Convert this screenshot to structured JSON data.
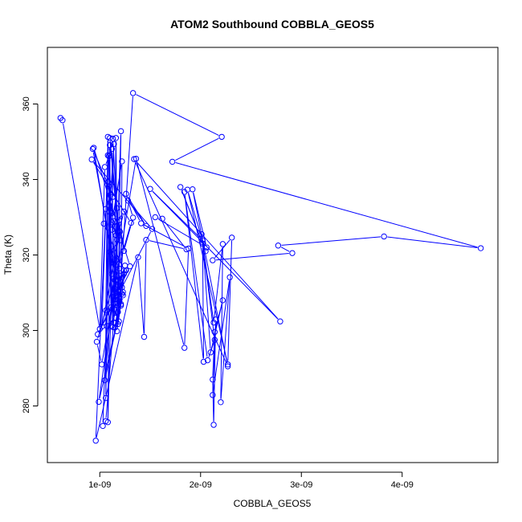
{
  "chart_data": {
    "type": "line",
    "title": "ATOM2 Southbound COBBLA_GEOS5",
    "xlabel": "COBBLA_GEOS5",
    "ylabel": "Theta (K)",
    "xlim": [
      4.8e-10,
      4.95e-09
    ],
    "ylim": [
      265,
      375
    ],
    "x_ticks": [
      1e-09,
      2e-09,
      3e-09,
      4e-09
    ],
    "x_tick_labels": [
      "1e-09",
      "2e-09",
      "3e-09",
      "4e-09"
    ],
    "y_ticks": [
      280,
      300,
      320,
      340,
      360
    ],
    "y_tick_labels": [
      "280",
      "300",
      "320",
      "340",
      "360"
    ],
    "grid": false,
    "legend": "none",
    "series": [
      {
        "color": "#0000ff",
        "marker": "open-circle",
        "points": [
          [
            6.1e-10,
            356.3
          ],
          [
            6.3e-10,
            355.7
          ],
          [
            1e-09,
            300.4
          ],
          [
            1.05e-09,
            343.3
          ],
          [
            1.12e-09,
            348.1
          ],
          [
            1.14e-09,
            302.0
          ],
          [
            1.16e-09,
            351.0
          ],
          [
            1.18e-09,
            304.9
          ],
          [
            1.21e-09,
            352.8
          ],
          [
            1.15e-09,
            307.2
          ],
          [
            1.09e-09,
            334.8
          ],
          [
            1.11e-09,
            306.1
          ],
          [
            1.1e-09,
            349.1
          ],
          [
            1.06e-09,
            282.1
          ],
          [
            1.06e-09,
            305.3
          ],
          [
            1.08e-09,
            351.3
          ],
          [
            1.13e-09,
            300.9
          ],
          [
            1.1e-09,
            331.4
          ],
          [
            1.08e-09,
            275.7
          ],
          [
            1.12e-09,
            315.0
          ],
          [
            1.2e-09,
            326.2
          ],
          [
            1.18e-09,
            301.7
          ],
          [
            1.33e-09,
            362.9
          ],
          [
            2.21e-09,
            351.3
          ],
          [
            1.72e-09,
            344.7
          ],
          [
            4.78e-09,
            321.8
          ],
          [
            3.82e-09,
            324.9
          ],
          [
            2.77e-09,
            322.5
          ],
          [
            2.91e-09,
            320.5
          ],
          [
            2.12e-09,
            318.6
          ],
          [
            2.31e-09,
            324.6
          ],
          [
            2.27e-09,
            291.0
          ],
          [
            1.87e-09,
            337.3
          ],
          [
            2.05e-09,
            321.0
          ],
          [
            1.8e-09,
            338.0
          ],
          [
            2.02e-09,
            323.0
          ],
          [
            2.03e-09,
            291.7
          ],
          [
            1.84e-09,
            336.7
          ],
          [
            2.07e-09,
            292.1
          ],
          [
            2.14e-09,
            297.5
          ],
          [
            2.01e-09,
            325.5
          ],
          [
            2.13e-09,
            302.1
          ],
          [
            2.22e-09,
            322.9
          ],
          [
            2.2e-09,
            281.0
          ],
          [
            2.29e-09,
            314.1
          ],
          [
            2.12e-09,
            282.9
          ],
          [
            2.15e-09,
            302.9
          ],
          [
            2.13e-09,
            275.0
          ],
          [
            2.12e-09,
            287.0
          ],
          [
            2.14e-09,
            299.6
          ],
          [
            2.22e-09,
            308.0
          ],
          [
            2.1e-09,
            294.2
          ],
          [
            2.02e-09,
            323.9
          ],
          [
            1.5e-09,
            337.5
          ],
          [
            2.79e-09,
            302.4
          ],
          [
            1.34e-09,
            345.4
          ],
          [
            2.27e-09,
            290.5
          ],
          [
            1.92e-09,
            337.4
          ],
          [
            2.06e-09,
            322.0
          ],
          [
            1.55e-09,
            330.0
          ],
          [
            1.62e-09,
            329.6
          ],
          [
            1.86e-09,
            321.5
          ],
          [
            1.46e-09,
            324.0
          ],
          [
            1.44e-09,
            298.3
          ],
          [
            1.38e-09,
            319.4
          ],
          [
            9.6e-10,
            270.8
          ],
          [
            1.06e-09,
            332.2
          ],
          [
            1.11e-09,
            336.1
          ],
          [
            1.03e-09,
            274.7
          ],
          [
            1.06e-09,
            276.0
          ],
          [
            1.17e-09,
            313.3
          ],
          [
            1.21e-09,
            306.6
          ],
          [
            1.22e-09,
            344.8
          ],
          [
            1.13e-09,
            330.2
          ],
          [
            1.17e-09,
            324.1
          ],
          [
            1.24e-09,
            331.5
          ],
          [
            1.12e-09,
            326.7
          ],
          [
            1.09e-09,
            338.2
          ],
          [
            9.3e-10,
            348.1
          ],
          [
            1.17e-09,
            312.9
          ],
          [
            1.24e-09,
            315.0
          ],
          [
            1.15e-09,
            313.3
          ],
          [
            9.4e-10,
            348.4
          ],
          [
            1.3e-09,
            317.0
          ],
          [
            9.8e-10,
            299.0
          ],
          [
            1.52e-09,
            326.9
          ],
          [
            9.2e-10,
            345.3
          ],
          [
            1.31e-09,
            328.5
          ],
          [
            9.7e-10,
            297.0
          ],
          [
            1.02e-09,
            291.0
          ],
          [
            1.36e-09,
            345.5
          ],
          [
            1.84e-09,
            295.4
          ],
          [
            1.88e-09,
            321.7
          ],
          [
            1.41e-09,
            328.4
          ],
          [
            1.26e-09,
            336.2
          ],
          [
            1.46e-09,
            327.7
          ],
          [
            1.28e-09,
            334.4
          ],
          [
            1.33e-09,
            329.9
          ],
          [
            1.24e-09,
            321.1
          ],
          [
            1.19e-09,
            329.2
          ],
          [
            1.05e-09,
            286.8
          ],
          [
            1.23e-09,
            309.3
          ],
          [
            9.9e-10,
            281.1
          ],
          [
            1.16e-09,
            313.2
          ],
          [
            1.22e-09,
            311.4
          ],
          [
            1.19e-09,
            314.6
          ],
          [
            1.26e-09,
            315.9
          ],
          [
            1.12e-09,
            301.2
          ],
          [
            1.15e-09,
            311.1
          ],
          [
            1.18e-09,
            310.3
          ],
          [
            1.25e-09,
            317.2
          ],
          [
            1.21e-09,
            307.0
          ],
          [
            1.17e-09,
            299.8
          ],
          [
            1.22e-09,
            309.7
          ],
          [
            1.15e-09,
            300.8
          ],
          [
            1.24e-09,
            315.9
          ],
          [
            1.04e-09,
            328.3
          ],
          [
            1.11e-09,
            328.1
          ],
          [
            1.13e-09,
            335.4
          ],
          [
            1.08e-09,
            339.3
          ],
          [
            1.12e-09,
            331.1
          ],
          [
            1.14e-09,
            349.4
          ],
          [
            1.1e-09,
            333.0
          ],
          [
            1.09e-09,
            346.2
          ],
          [
            1.13e-09,
            350.8
          ],
          [
            1.18e-09,
            326.1
          ],
          [
            1.1e-09,
            351.0
          ],
          [
            1.2e-09,
            323.9
          ],
          [
            1.1e-09,
            320.8
          ],
          [
            1.16e-09,
            318.6
          ],
          [
            1.19e-09,
            316.4
          ],
          [
            1.2e-09,
            313.1
          ],
          [
            1.23e-09,
            310.2
          ],
          [
            1.18e-09,
            308.0
          ],
          [
            1.14e-09,
            305.6
          ],
          [
            1.19e-09,
            302.4
          ],
          [
            1.12e-09,
            328.6
          ],
          [
            1.16e-09,
            325.2
          ],
          [
            1.17e-09,
            332.4
          ],
          [
            1.15e-09,
            309.9
          ],
          [
            1.18e-09,
            306.6
          ],
          [
            1.15e-09,
            303.4
          ],
          [
            1.07e-09,
            301.2
          ],
          [
            1.08e-09,
            346.4
          ],
          [
            1.02e-09,
            301.0
          ],
          [
            1.14e-09,
            317.8
          ]
        ]
      }
    ]
  }
}
